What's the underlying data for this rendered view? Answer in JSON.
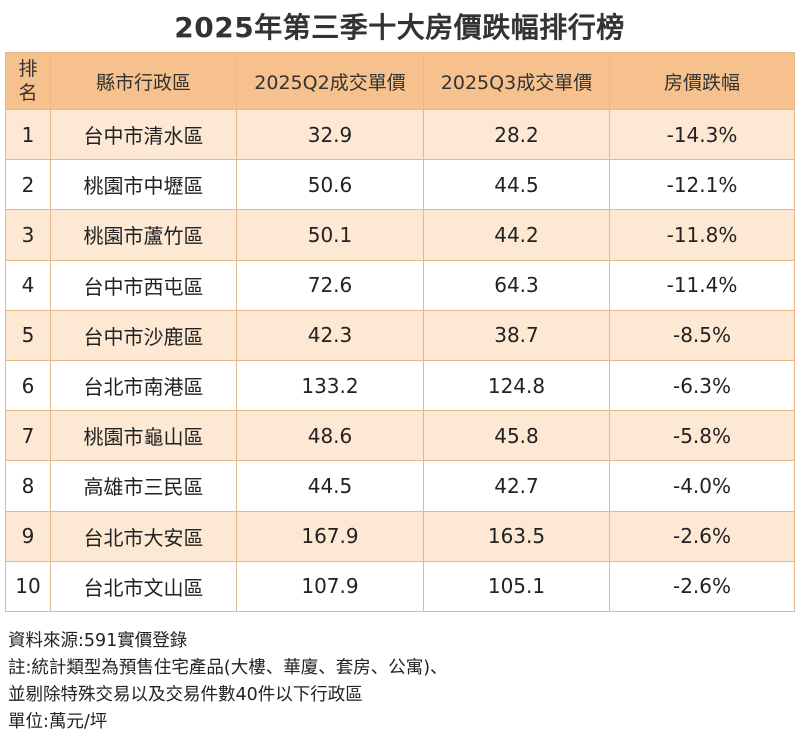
{
  "title": "2025年第三季十大房價跌幅排行榜",
  "chart_data": {
    "type": "table",
    "title": "2025年第三季十大房價跌幅排行榜",
    "columns": [
      "排名",
      "縣市行政區",
      "2025Q2成交單價",
      "2025Q3成交單價",
      "房價跌幅"
    ],
    "rows": [
      [
        "1",
        "台中市清水區",
        "32.9",
        "28.2",
        "-14.3%"
      ],
      [
        "2",
        "桃園市中壢區",
        "50.6",
        "44.5",
        "-12.1%"
      ],
      [
        "3",
        "桃園市蘆竹區",
        "50.1",
        "44.2",
        "-11.8%"
      ],
      [
        "4",
        "台中市西屯區",
        "72.6",
        "64.3",
        "-11.4%"
      ],
      [
        "5",
        "台中市沙鹿區",
        "42.3",
        "38.7",
        "-8.5%"
      ],
      [
        "6",
        "台北市南港區",
        "133.2",
        "124.8",
        "-6.3%"
      ],
      [
        "7",
        "桃園市龜山區",
        "48.6",
        "45.8",
        "-5.8%"
      ],
      [
        "8",
        "高雄市三民區",
        "44.5",
        "42.7",
        "-4.0%"
      ],
      [
        "9",
        "台北市大安區",
        "167.9",
        "163.5",
        "-2.6%"
      ],
      [
        "10",
        "台北市文山區",
        "107.9",
        "105.1",
        "-2.6%"
      ]
    ]
  },
  "notes": [
    "資料來源:591實價登錄",
    "註:統計類型為預售住宅產品(大樓、華廈、套房、公寓)、",
    "並剔除特殊交易以及交易件數40件以下行政區",
    "單位:萬元/坪"
  ],
  "colors": {
    "header_bg": "#f6c18c",
    "odd_row_bg": "#fde8d4",
    "even_row_bg": "#ffffff",
    "border": "#e7b88e"
  }
}
